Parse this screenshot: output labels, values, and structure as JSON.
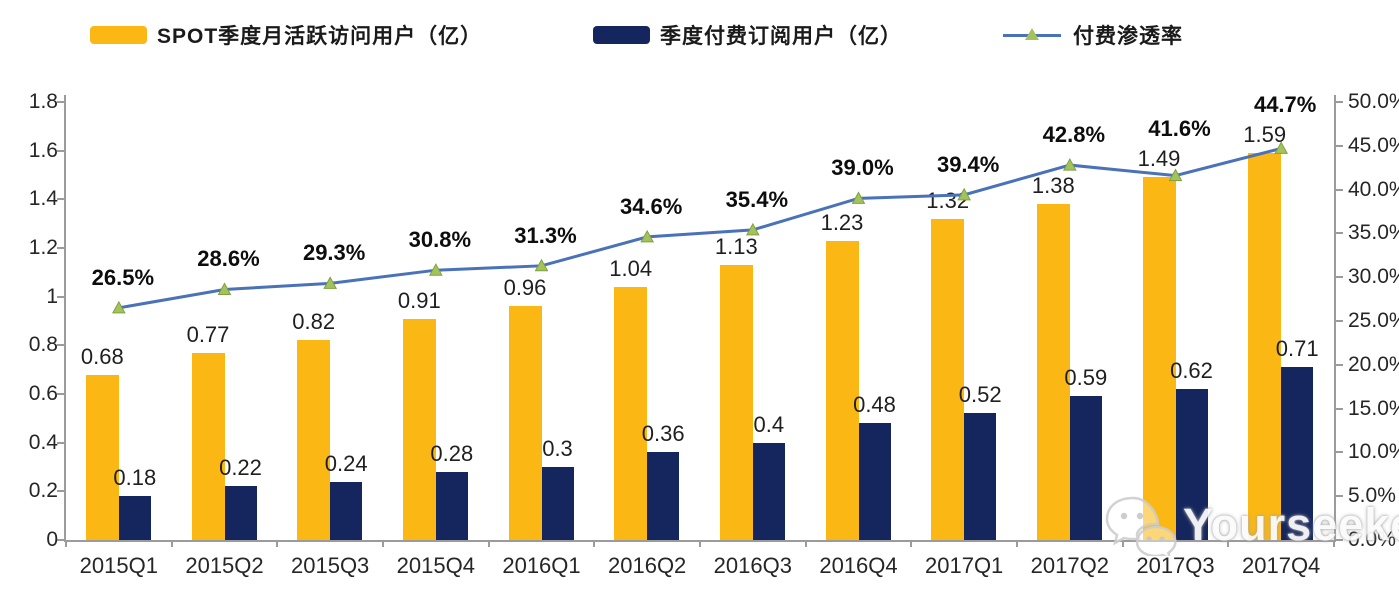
{
  "legend": [
    {
      "label": "SPOT季度月活跃访问用户（亿）",
      "type": "bar",
      "color": "#FBB713"
    },
    {
      "label": "季度付费订阅用户（亿）",
      "type": "bar",
      "color": "#15265E"
    },
    {
      "label": "付费渗透率",
      "type": "line",
      "color": "#4A72B8",
      "marker_color": "#A4C25C"
    }
  ],
  "chart_data": {
    "type": "combo",
    "categories": [
      "2015Q1",
      "2015Q2",
      "2015Q3",
      "2015Q4",
      "2016Q1",
      "2016Q2",
      "2016Q3",
      "2016Q4",
      "2017Q1",
      "2017Q2",
      "2017Q3",
      "2017Q4"
    ],
    "series": [
      {
        "name": "SPOT季度月活跃访问用户（亿）",
        "type": "bar",
        "axis": "left",
        "color": "#FBB713",
        "values": [
          0.68,
          0.77,
          0.82,
          0.91,
          0.96,
          1.04,
          1.13,
          1.23,
          1.32,
          1.38,
          1.49,
          1.59
        ],
        "labels": [
          "0.68",
          "0.77",
          "0.82",
          "0.91",
          "0.96",
          "1.04",
          "1.13",
          "1.23",
          "1.32",
          "1.38",
          "1.49",
          "1.59"
        ]
      },
      {
        "name": "季度付费订阅用户（亿）",
        "type": "bar",
        "axis": "left",
        "color": "#15265E",
        "values": [
          0.18,
          0.22,
          0.24,
          0.28,
          0.3,
          0.36,
          0.4,
          0.48,
          0.52,
          0.59,
          0.62,
          0.71
        ],
        "labels": [
          "0.18",
          "0.22",
          "0.24",
          "0.28",
          "0.3",
          "0.36",
          "0.4",
          "0.48",
          "0.52",
          "0.59",
          "0.62",
          "0.71"
        ]
      },
      {
        "name": "付费渗透率",
        "type": "line",
        "axis": "right",
        "color": "#4A72B8",
        "marker_color": "#A4C25C",
        "marker_edge_color": "#7FA23E",
        "values": [
          26.5,
          28.6,
          29.3,
          30.8,
          31.3,
          34.6,
          35.4,
          39.0,
          39.4,
          42.8,
          41.6,
          44.7
        ],
        "labels": [
          "26.5%",
          "28.6%",
          "29.3%",
          "30.8%",
          "31.3%",
          "34.6%",
          "35.4%",
          "39.0%",
          "39.4%",
          "42.8%",
          "41.6%",
          "44.7%"
        ]
      }
    ],
    "left_axis": {
      "min": 0,
      "max": 1.8,
      "ticks": [
        "0",
        "0.2",
        "0.4",
        "0.6",
        "0.8",
        "1",
        "1.2",
        "1.4",
        "1.6",
        "1.8"
      ]
    },
    "right_axis": {
      "min": 0,
      "max": 50,
      "ticks": [
        "0.0%",
        "5.0%",
        "10.0%",
        "15.0%",
        "20.0%",
        "25.0%",
        "30.0%",
        "35.0%",
        "40.0%",
        "45.0%",
        "50.0%"
      ]
    },
    "title": "",
    "xlabel": "",
    "ylabel": "",
    "grid": false,
    "legend_position": "top"
  },
  "watermark": {
    "text": "Yourseeker",
    "icon": "wechat-icon"
  }
}
